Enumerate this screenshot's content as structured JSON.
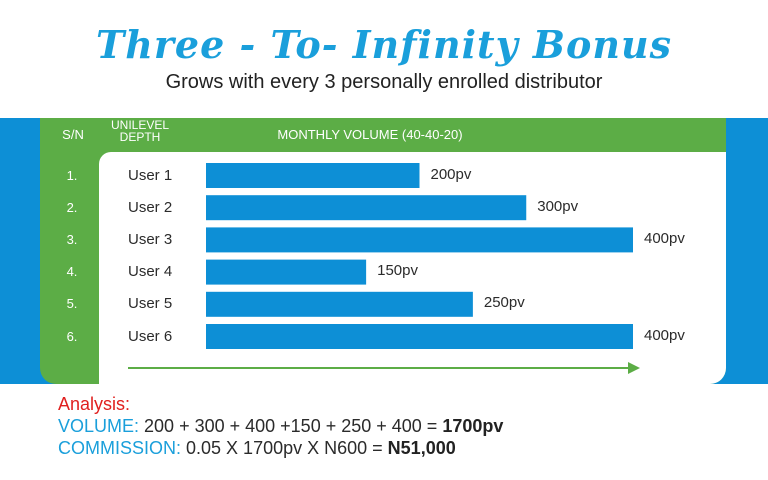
{
  "title": "Three - To- Infinity Bonus",
  "subtitle": "Grows with every 3 personally enrolled distributor",
  "table_header": {
    "sn": "S/N",
    "depth": "UNILEVEL DEPTH",
    "volume": "MONTHLY VOLUME (40-40-20)"
  },
  "colors": {
    "green": "#5cad46",
    "blue": "#0d8fd6",
    "bar": "#0d8fd6",
    "title": "#1a9fdb",
    "analysis": "#e0201f"
  },
  "chart_data": {
    "type": "bar",
    "orientation": "horizontal",
    "serial": [
      "1.",
      "2.",
      "3.",
      "4.",
      "5.",
      "6."
    ],
    "categories": [
      "User 1",
      "User 2",
      "User 3",
      "User 4",
      "User 5",
      "User 6"
    ],
    "values": [
      200,
      300,
      400,
      150,
      250,
      400
    ],
    "value_labels": [
      "200pv",
      "300pv",
      "400pv",
      "150pv",
      "250pv",
      "400pv"
    ],
    "xlim": [
      0,
      400
    ]
  },
  "analysis": {
    "label": "Analysis:",
    "volume_key": "VOLUME:",
    "volume_expr": " 200 + 300 + 400 +150 + 250 + 400 = ",
    "volume_total": "1700pv",
    "commission_key": "COMMISSION:",
    "commission_expr": " 0.05 X 1700pv X N600 = ",
    "commission_total": "N51,000"
  }
}
